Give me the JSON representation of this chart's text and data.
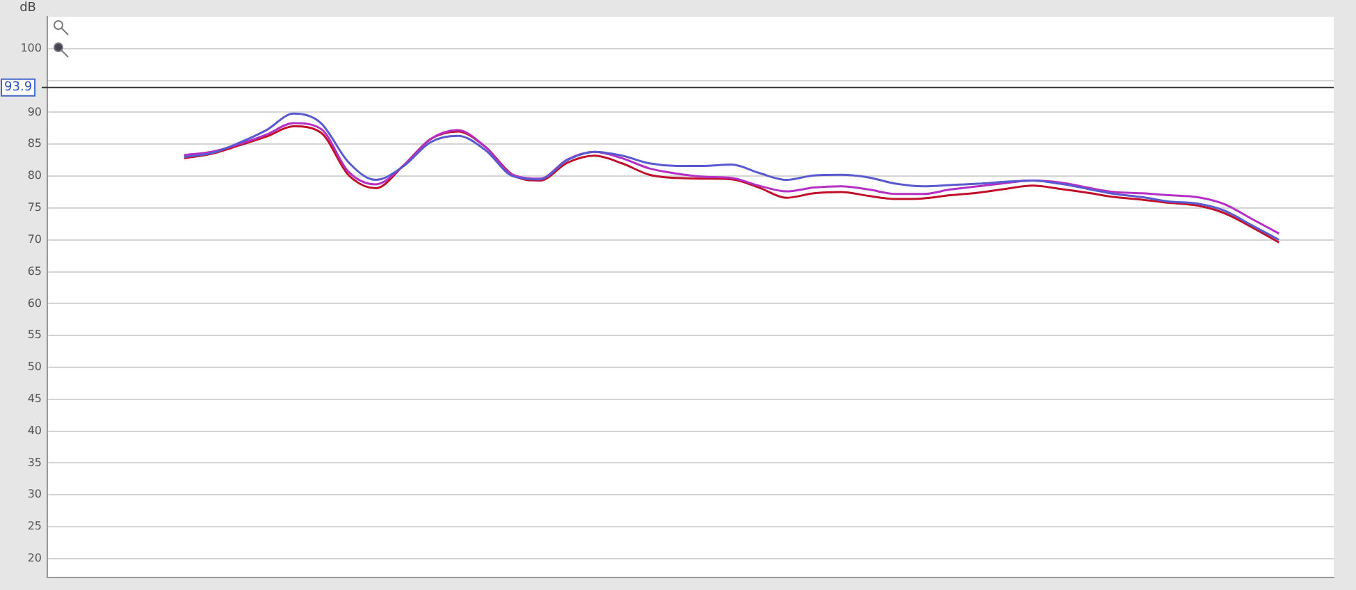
{
  "chart_data": {
    "type": "line",
    "ylabel": "dB",
    "categories": [
      null,
      null,
      null,
      null,
      null,
      null,
      null,
      null,
      null,
      null,
      null,
      null,
      null,
      null,
      null,
      null,
      null,
      null,
      null,
      null,
      null,
      null,
      null,
      null,
      null,
      null,
      null,
      null,
      null,
      null,
      null,
      null,
      null,
      null,
      null,
      null,
      null,
      null,
      null,
      null,
      null,
      null,
      null,
      null,
      null,
      null,
      null,
      null
    ],
    "series": [
      {
        "color": "#5a5ad0",
        "values": [
          null,
          null,
          null,
          null,
          null,
          83,
          83.6,
          85.2,
          87.2,
          89.8,
          88.3,
          82.2,
          79.4,
          81.5,
          85.3,
          86.3,
          84.1,
          80,
          79.5,
          82.5,
          83.8,
          83.2,
          82,
          81.6,
          81.6,
          81.8,
          80.5,
          79.4,
          80.1,
          80.2,
          79.8,
          78.8,
          78.4,
          78.6,
          78.8,
          79.1,
          79.3,
          78.8,
          78,
          77.2,
          76.7,
          76,
          75.7,
          74.6,
          72.3,
          70,
          null,
          null
        ]
      },
      {
        "color": "#b52fc4",
        "values": [
          null,
          null,
          null,
          null,
          null,
          83.3,
          83.8,
          85,
          86.5,
          88.3,
          87.4,
          80.7,
          78.7,
          81.6,
          85.8,
          87.2,
          84.6,
          80.2,
          79.6,
          82.6,
          83.8,
          82.8,
          81.2,
          80.4,
          79.9,
          79.7,
          78.5,
          77.6,
          78.2,
          78.4,
          77.9,
          77.2,
          77.2,
          77.9,
          78.4,
          78.9,
          79.3,
          79,
          78.2,
          77.5,
          77.3,
          77,
          76.7,
          75.6,
          73.3,
          71,
          null,
          null
        ]
      },
      {
        "color": "#c0102c",
        "values": [
          null,
          null,
          null,
          null,
          null,
          82.8,
          83.5,
          84.8,
          86.2,
          87.8,
          86.8,
          80.2,
          78.1,
          81.6,
          85.8,
          87,
          84.6,
          80.2,
          79.3,
          82.1,
          83.2,
          82,
          80.2,
          79.7,
          79.6,
          79.5,
          78.2,
          76.6,
          77.3,
          77.5,
          76.9,
          76.4,
          76.5,
          77,
          77.4,
          78,
          78.5,
          78,
          77.4,
          76.7,
          76.3,
          75.8,
          75.4,
          74.2,
          72,
          69.6,
          null,
          null
        ]
      }
    ],
    "ylim": [
      17,
      105
    ],
    "yticks": [
      20,
      25,
      30,
      35,
      40,
      45,
      50,
      55,
      60,
      65,
      70,
      75,
      80,
      85,
      90,
      {
        "value": 95,
        "label": null
      },
      100
    ],
    "ref_lines": [
      {
        "axis": "y",
        "value": 93.9,
        "label": "93.9",
        "color": "#333333"
      }
    ],
    "grid": "y",
    "legend": false,
    "marker": "none",
    "line_style": "solid"
  }
}
